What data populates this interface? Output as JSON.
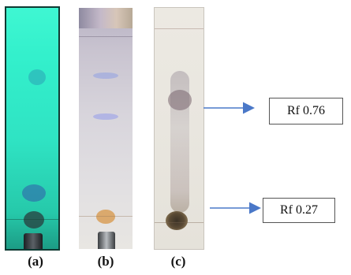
{
  "panels": [
    {
      "label": "(a)"
    },
    {
      "label": "(b)"
    },
    {
      "label": "(c)"
    }
  ],
  "annotations": [
    {
      "text": "Rf 0.76"
    },
    {
      "text": "Rf 0.27"
    }
  ],
  "colors": {
    "arrow": "#4a78c8",
    "uv_strip": "#33f0cc",
    "spot_brown": "#6b5a3c"
  }
}
